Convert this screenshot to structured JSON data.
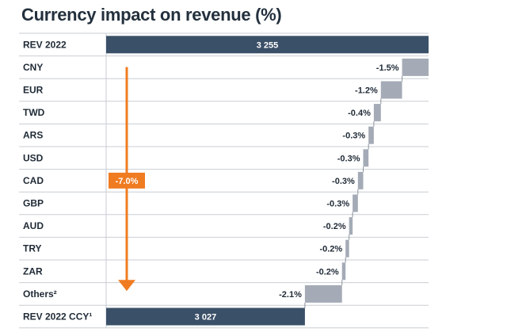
{
  "chart_data": {
    "type": "waterfall",
    "title": "Currency impact on revenue (%)",
    "start": {
      "label": "REV 2022",
      "value": 3255,
      "value_label": "3 255"
    },
    "end": {
      "label": "REV 2022 CCY¹",
      "value": 3027,
      "value_label": "3 027"
    },
    "steps": [
      {
        "label": "CNY",
        "value": -1.5,
        "value_label": "-1.5%"
      },
      {
        "label": "EUR",
        "value": -1.2,
        "value_label": "-1.2%"
      },
      {
        "label": "TWD",
        "value": -0.4,
        "value_label": "-0.4%"
      },
      {
        "label": "ARS",
        "value": -0.3,
        "value_label": "-0.3%"
      },
      {
        "label": "USD",
        "value": -0.3,
        "value_label": "-0.3%"
      },
      {
        "label": "CAD",
        "value": -0.3,
        "value_label": "-0.3%"
      },
      {
        "label": "GBP",
        "value": -0.3,
        "value_label": "-0.3%"
      },
      {
        "label": "AUD",
        "value": -0.2,
        "value_label": "-0.2%"
      },
      {
        "label": "TRY",
        "value": -0.2,
        "value_label": "-0.2%"
      },
      {
        "label": "ZAR",
        "value": -0.2,
        "value_label": "-0.2%"
      },
      {
        "label": "Others²",
        "value": -2.1,
        "value_label": "-2.1%"
      }
    ],
    "total_change": {
      "value": -7.0,
      "label": "-7.0%"
    },
    "colors": {
      "total_bar": "#3a5068",
      "step_bar": "#a4abb6",
      "arrow": "#f07c22",
      "grid": "#c9ced4"
    }
  }
}
